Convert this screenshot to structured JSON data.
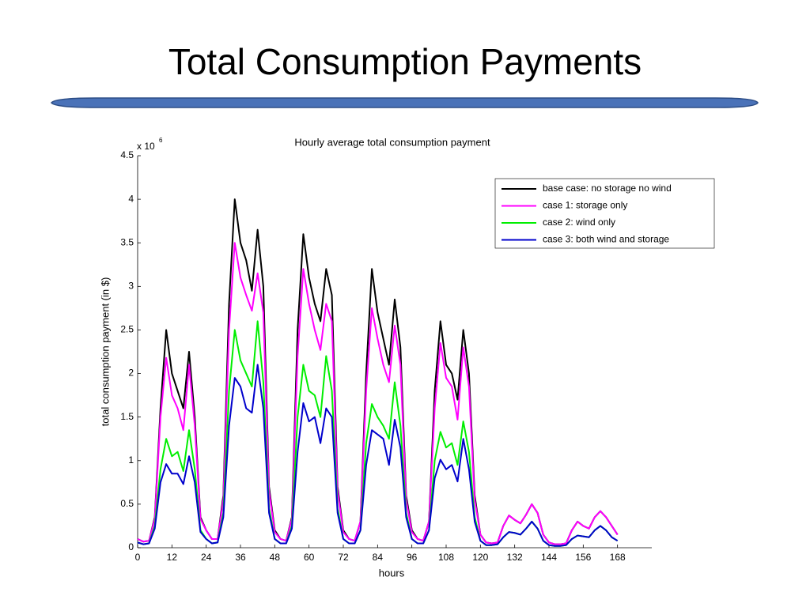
{
  "slide_title": "Total Consumption Payments",
  "chart_data": {
    "type": "line",
    "title": "Hourly average total consumption payment",
    "xlabel": "hours",
    "ylabel": "total consumption payment (in $)",
    "y_multiplier": "x 10",
    "y_multiplier_exponent": "6",
    "legend": "upper right",
    "xlim": [
      0,
      180
    ],
    "xticks": [
      0,
      12,
      24,
      36,
      48,
      60,
      72,
      84,
      96,
      108,
      120,
      132,
      144,
      156,
      168
    ],
    "ylim": [
      0,
      4.5
    ],
    "yticks": [
      0,
      0.5,
      1,
      1.5,
      2,
      2.5,
      3,
      3.5,
      4,
      4.5
    ],
    "x": [
      0,
      2,
      4,
      6,
      8,
      10,
      12,
      14,
      16,
      18,
      20,
      22,
      24,
      26,
      28,
      30,
      32,
      34,
      36,
      38,
      40,
      42,
      44,
      46,
      48,
      50,
      52,
      54,
      56,
      58,
      60,
      62,
      64,
      66,
      68,
      70,
      72,
      74,
      76,
      78,
      80,
      82,
      84,
      86,
      88,
      90,
      92,
      94,
      96,
      98,
      100,
      102,
      104,
      106,
      108,
      110,
      112,
      114,
      116,
      118,
      120,
      122,
      124,
      126,
      128,
      130,
      132,
      134,
      136,
      138,
      140,
      142,
      144,
      146,
      148,
      150,
      152,
      154,
      156,
      158,
      160,
      162,
      164,
      166,
      168
    ],
    "series": [
      {
        "name": "base case: no storage no wind",
        "color": "#000000",
        "values": [
          0.1,
          0.07,
          0.08,
          0.35,
          1.6,
          2.5,
          2.0,
          1.8,
          1.6,
          2.25,
          1.5,
          0.35,
          0.2,
          0.1,
          0.1,
          0.6,
          2.8,
          4.0,
          3.5,
          3.3,
          2.95,
          3.65,
          3.0,
          0.7,
          0.2,
          0.1,
          0.08,
          0.35,
          2.5,
          3.6,
          3.1,
          2.8,
          2.6,
          3.2,
          2.9,
          0.7,
          0.2,
          0.1,
          0.08,
          0.3,
          2.0,
          3.2,
          2.7,
          2.4,
          2.1,
          2.85,
          2.3,
          0.6,
          0.2,
          0.1,
          0.08,
          0.3,
          1.8,
          2.6,
          2.1,
          2.0,
          1.7,
          2.5,
          2.0,
          0.6,
          0.15,
          0.06,
          0.05,
          0.06,
          0.25,
          0.37,
          0.32,
          0.28,
          0.38,
          0.5,
          0.4,
          0.15,
          0.06,
          0.04,
          0.04,
          0.05,
          0.2,
          0.3,
          0.25,
          0.22,
          0.35,
          0.42,
          0.35,
          0.25,
          0.15
        ]
      },
      {
        "name": "case 1: storage only",
        "color": "#ff00ff",
        "values": [
          0.1,
          0.07,
          0.08,
          0.33,
          1.5,
          2.18,
          1.75,
          1.6,
          1.35,
          2.1,
          1.4,
          0.33,
          0.2,
          0.1,
          0.1,
          0.55,
          2.5,
          3.5,
          3.1,
          2.9,
          2.72,
          3.15,
          2.7,
          0.65,
          0.18,
          0.1,
          0.08,
          0.33,
          2.2,
          3.2,
          2.8,
          2.5,
          2.27,
          2.8,
          2.6,
          0.65,
          0.18,
          0.1,
          0.08,
          0.3,
          1.8,
          2.75,
          2.4,
          2.1,
          1.9,
          2.55,
          2.1,
          0.55,
          0.18,
          0.1,
          0.08,
          0.3,
          1.6,
          2.35,
          1.95,
          1.85,
          1.47,
          2.3,
          1.85,
          0.55,
          0.15,
          0.06,
          0.05,
          0.06,
          0.25,
          0.37,
          0.32,
          0.28,
          0.38,
          0.5,
          0.4,
          0.15,
          0.06,
          0.04,
          0.04,
          0.05,
          0.2,
          0.3,
          0.25,
          0.22,
          0.35,
          0.42,
          0.35,
          0.25,
          0.15
        ]
      },
      {
        "name": "case 2: wind only",
        "color": "#00ee00",
        "values": [
          0.06,
          0.04,
          0.05,
          0.25,
          0.9,
          1.25,
          1.05,
          1.1,
          0.88,
          1.35,
          0.9,
          0.2,
          0.1,
          0.05,
          0.06,
          0.4,
          1.8,
          2.5,
          2.15,
          2.0,
          1.85,
          2.6,
          1.9,
          0.45,
          0.1,
          0.05,
          0.05,
          0.25,
          1.5,
          2.1,
          1.8,
          1.75,
          1.5,
          2.2,
          1.8,
          0.45,
          0.1,
          0.05,
          0.05,
          0.2,
          1.2,
          1.65,
          1.5,
          1.4,
          1.25,
          1.9,
          1.4,
          0.4,
          0.1,
          0.05,
          0.05,
          0.2,
          1.0,
          1.33,
          1.15,
          1.2,
          0.95,
          1.45,
          1.1,
          0.35,
          0.08,
          0.03,
          0.03,
          0.04,
          0.12,
          0.18,
          0.17,
          0.15,
          0.22,
          0.3,
          0.22,
          0.08,
          0.03,
          0.02,
          0.02,
          0.03,
          0.1,
          0.14,
          0.13,
          0.12,
          0.2,
          0.25,
          0.2,
          0.12,
          0.08
        ]
      },
      {
        "name": "case 3: both wind and storage",
        "color": "#0000cc",
        "values": [
          0.06,
          0.04,
          0.05,
          0.22,
          0.75,
          0.96,
          0.85,
          0.85,
          0.73,
          1.05,
          0.75,
          0.18,
          0.1,
          0.05,
          0.06,
          0.35,
          1.4,
          1.95,
          1.85,
          1.6,
          1.55,
          2.1,
          1.6,
          0.4,
          0.1,
          0.05,
          0.05,
          0.22,
          1.1,
          1.66,
          1.45,
          1.5,
          1.2,
          1.6,
          1.5,
          0.4,
          0.1,
          0.05,
          0.05,
          0.2,
          0.95,
          1.35,
          1.3,
          1.25,
          0.95,
          1.47,
          1.15,
          0.35,
          0.1,
          0.05,
          0.05,
          0.2,
          0.8,
          1.01,
          0.9,
          0.95,
          0.76,
          1.25,
          0.9,
          0.3,
          0.08,
          0.03,
          0.03,
          0.04,
          0.12,
          0.18,
          0.17,
          0.15,
          0.22,
          0.3,
          0.22,
          0.08,
          0.03,
          0.02,
          0.02,
          0.03,
          0.1,
          0.14,
          0.13,
          0.12,
          0.2,
          0.25,
          0.2,
          0.12,
          0.08
        ]
      }
    ]
  }
}
